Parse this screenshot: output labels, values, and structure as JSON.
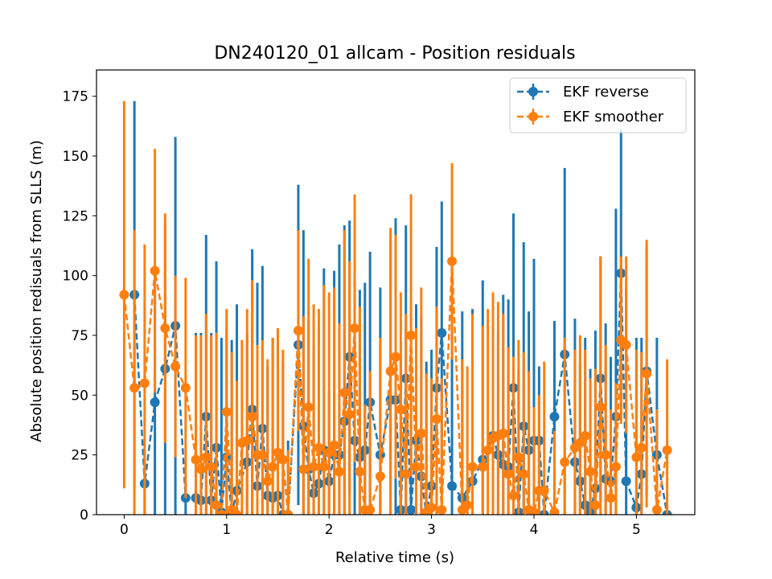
{
  "chart_data": {
    "type": "scatter",
    "title": "DN240120_01 allcam - Position residuals",
    "xlabel": "Relative time (s)",
    "ylabel": "Absolute position redisuals from SLLS (m)",
    "xlim": [
      -0.27,
      5.57
    ],
    "ylim": [
      0,
      186
    ],
    "xticks": [
      0,
      1,
      2,
      3,
      4,
      5
    ],
    "yticks": [
      0,
      25,
      50,
      75,
      100,
      125,
      150,
      175
    ],
    "legend_position": "top-right",
    "colors": {
      "reverse": "#1f77b4",
      "smoother": "#ff7f0e"
    },
    "series": [
      {
        "name": "EKF reverse",
        "color": "#1f77b4",
        "style": "dashed-line-with-markers-and-errorbars",
        "x": [
          0.1,
          0.2,
          0.3,
          0.4,
          0.5,
          0.6,
          0.7,
          0.75,
          0.8,
          0.85,
          0.9,
          0.95,
          1.0,
          1.05,
          1.1,
          1.2,
          1.25,
          1.3,
          1.35,
          1.4,
          1.45,
          1.5,
          1.55,
          1.6,
          1.7,
          1.75,
          1.8,
          1.85,
          1.9,
          1.95,
          2.0,
          2.05,
          2.1,
          2.15,
          2.2,
          2.25,
          2.3,
          2.35,
          2.4,
          2.5,
          2.6,
          2.65,
          2.7,
          2.75,
          2.8,
          2.85,
          2.9,
          2.95,
          3.0,
          3.05,
          3.1,
          3.2,
          3.3,
          3.4,
          3.5,
          3.6,
          3.65,
          3.7,
          3.75,
          3.8,
          3.85,
          3.9,
          3.95,
          4.0,
          4.05,
          4.1,
          4.2,
          4.3,
          4.4,
          4.45,
          4.5,
          4.55,
          4.6,
          4.65,
          4.7,
          4.75,
          4.8,
          4.85,
          4.9,
          5.0,
          5.05,
          5.1,
          5.2,
          5.3
        ],
        "y": [
          92,
          13,
          47,
          61,
          79,
          7,
          7,
          6,
          41,
          6,
          28,
          1,
          24,
          0,
          10,
          22,
          44,
          12,
          36,
          8,
          7,
          8,
          0,
          0,
          71,
          37,
          19,
          9,
          13,
          27,
          14,
          25,
          25,
          39,
          66,
          31,
          24,
          27,
          47,
          25,
          48,
          48,
          2,
          57,
          2,
          31,
          16,
          0,
          12,
          53,
          76,
          12,
          7,
          14,
          23,
          33,
          25,
          21,
          20,
          53,
          1,
          37,
          27,
          31,
          31,
          0,
          41,
          67,
          22,
          14,
          4,
          1,
          11,
          57,
          15,
          14,
          41,
          101,
          14,
          3,
          17,
          60,
          25,
          0
        ],
        "err": [
          81,
          13,
          54,
          61,
          79,
          7,
          69,
          70,
          76,
          70,
          78,
          73,
          54,
          73,
          78,
          54,
          67,
          85,
          68,
          54,
          67,
          68,
          64,
          31,
          67,
          82,
          62,
          62,
          67,
          76,
          38,
          77,
          88,
          82,
          57,
          69,
          70,
          70,
          63,
          70,
          67,
          76,
          65,
          64,
          63,
          57,
          67,
          64,
          57,
          59,
          55,
          72,
          78,
          72,
          75,
          43,
          51,
          71,
          70,
          73,
          59,
          77,
          58,
          76,
          31,
          0,
          40,
          78,
          60,
          49,
          70,
          60,
          66,
          51,
          65,
          52,
          87,
          60,
          80,
          71,
          57,
          53,
          49,
          0
        ]
      },
      {
        "name": "EKF smoother",
        "color": "#ff7f0e",
        "style": "dashed-line-with-markers-and-errorbars",
        "x": [
          0.0,
          0.1,
          0.2,
          0.3,
          0.4,
          0.5,
          0.6,
          0.7,
          0.75,
          0.8,
          0.85,
          0.9,
          0.95,
          1.0,
          1.05,
          1.1,
          1.15,
          1.2,
          1.25,
          1.3,
          1.35,
          1.4,
          1.45,
          1.5,
          1.55,
          1.6,
          1.7,
          1.75,
          1.8,
          1.85,
          1.9,
          1.95,
          2.0,
          2.05,
          2.1,
          2.15,
          2.2,
          2.25,
          2.3,
          2.35,
          2.4,
          2.5,
          2.6,
          2.65,
          2.7,
          2.75,
          2.8,
          2.85,
          2.9,
          2.95,
          3.0,
          3.05,
          3.1,
          3.2,
          3.3,
          3.35,
          3.4,
          3.5,
          3.55,
          3.6,
          3.65,
          3.7,
          3.75,
          3.8,
          3.85,
          3.9,
          3.95,
          4.0,
          4.05,
          4.1,
          4.2,
          4.3,
          4.4,
          4.45,
          4.5,
          4.55,
          4.6,
          4.65,
          4.7,
          4.75,
          4.8,
          4.85,
          4.9,
          5.0,
          5.05,
          5.1,
          5.2,
          5.3
        ],
        "y": [
          92,
          53,
          55,
          102,
          78,
          62,
          53,
          23,
          19,
          24,
          20,
          4,
          0,
          43,
          2,
          0,
          30,
          31,
          41,
          25,
          25,
          14,
          20,
          26,
          23,
          0,
          77,
          19,
          45,
          20,
          28,
          20,
          26,
          29,
          18,
          51,
          42,
          78,
          18,
          2,
          2,
          16,
          60,
          66,
          44,
          17,
          75,
          20,
          34,
          1,
          3,
          40,
          2,
          106,
          2,
          4,
          20,
          20,
          27,
          32,
          33,
          34,
          17,
          8,
          24,
          17,
          2,
          1,
          10,
          10,
          1,
          22,
          28,
          30,
          33,
          18,
          4,
          45,
          25,
          7,
          20,
          73,
          71,
          24,
          28,
          59,
          2,
          27
        ],
        "err": [
          81,
          66,
          58,
          51,
          48,
          38,
          46,
          52,
          56,
          60,
          55,
          72,
          0,
          43,
          66,
          56,
          43,
          55,
          57,
          46,
          48,
          51,
          54,
          52,
          46,
          27,
          42,
          64,
          62,
          68,
          58,
          76,
          67,
          66,
          62,
          68,
          64,
          56,
          69,
          44,
          58,
          58,
          60,
          51,
          49,
          67,
          59,
          58,
          61,
          58,
          54,
          47,
          55,
          41,
          63,
          58,
          64,
          59,
          59,
          61,
          56,
          50,
          53,
          58,
          49,
          51,
          58,
          44,
          40,
          54,
          34,
          52,
          41,
          45,
          36,
          39,
          57,
          63,
          46,
          37,
          35,
          35,
          37,
          45,
          40,
          56,
          42,
          38
        ]
      }
    ]
  }
}
